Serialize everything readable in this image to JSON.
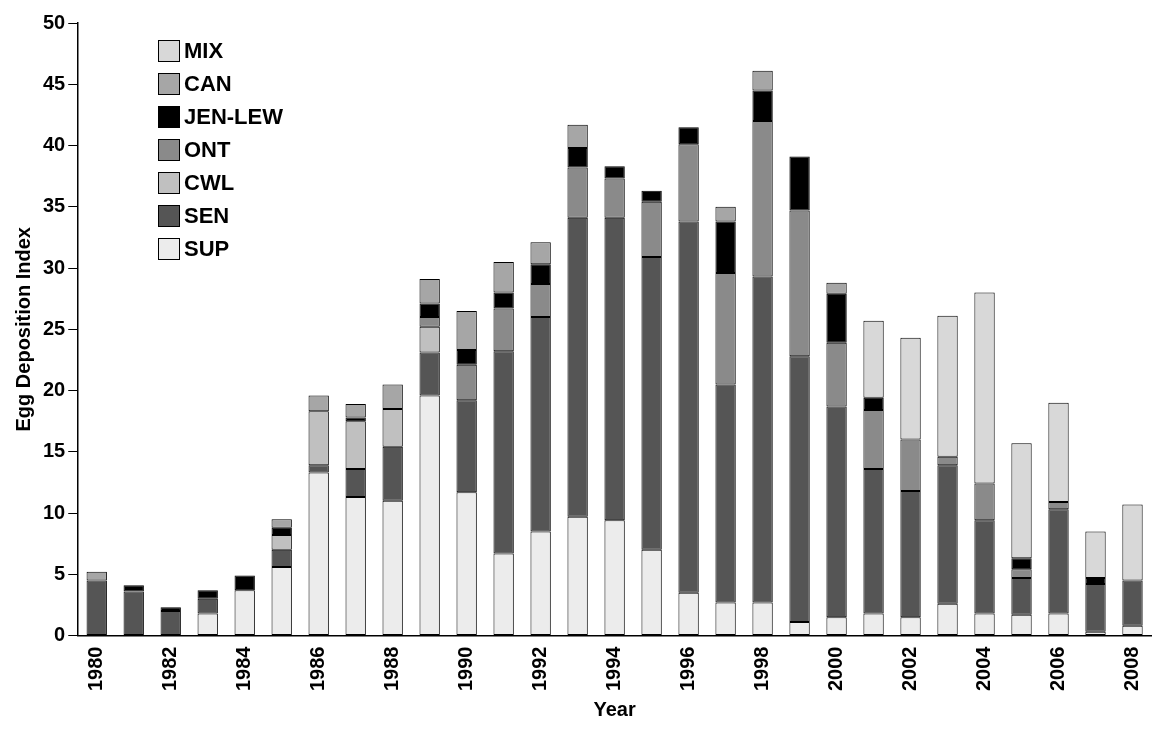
{
  "chart_data": {
    "type": "bar",
    "stacked": true,
    "xlabel": "Year",
    "ylabel": "Egg Deposition Index",
    "ylim": [
      0,
      50
    ],
    "yticks": [
      0,
      5,
      10,
      15,
      20,
      25,
      30,
      35,
      40,
      45,
      50
    ],
    "grid": false,
    "legend": "top left",
    "categories": [
      "1980",
      null,
      "1982",
      null,
      "1984",
      null,
      "1986",
      null,
      "1988",
      null,
      "1990",
      null,
      "1992",
      null,
      "1994",
      null,
      "1996",
      null,
      "1998",
      null,
      "2000",
      null,
      "2002",
      null,
      "2004",
      null,
      "2006",
      null,
      "2008"
    ],
    "series": [
      {
        "name": "SUP",
        "color": "#ececec",
        "values": [
          0,
          0,
          0,
          1.8,
          3.7,
          5.6,
          13.3,
          11.3,
          11.0,
          19.6,
          11.7,
          6.7,
          8.5,
          9.7,
          9.4,
          7.0,
          3.5,
          2.7,
          2.7,
          1.1,
          1.5,
          1.8,
          1.5,
          2.6,
          1.8,
          1.7,
          1.8,
          0.3,
          0.8
        ]
      },
      {
        "name": "SEN",
        "color": "#555555",
        "values": [
          4.5,
          3.6,
          2.0,
          1.2,
          0,
          1.4,
          0.6,
          2.3,
          4.4,
          3.5,
          7.5,
          16.5,
          17.5,
          24.4,
          24.7,
          23.9,
          30.3,
          17.8,
          26.6,
          21.7,
          17.2,
          11.8,
          10.3,
          11.3,
          7.6,
          3.0,
          8.5,
          3.9,
          3.7
        ]
      },
      {
        "name": "CWL",
        "color": "#c0c0c0",
        "values": [
          0,
          0,
          0,
          0,
          0,
          1.2,
          4.4,
          3.9,
          3.1,
          2.1,
          0,
          0,
          0,
          0,
          0,
          0,
          0,
          0,
          0,
          0,
          0,
          0,
          0,
          0,
          0,
          0,
          0,
          0,
          0
        ]
      },
      {
        "name": "ONT",
        "color": "#8a8a8a",
        "values": [
          0,
          0,
          0,
          0,
          0,
          0,
          0,
          0,
          0,
          0.8,
          2.9,
          3.5,
          2.7,
          4.1,
          3.2,
          4.5,
          6.3,
          9.1,
          12.7,
          11.9,
          5.2,
          4.8,
          4.2,
          0.7,
          3.0,
          0.7,
          0.6,
          0,
          0
        ]
      },
      {
        "name": "JEN-LEW",
        "color": "#000000",
        "values": [
          0,
          0.5,
          0.3,
          0.7,
          1.2,
          0.6,
          0,
          0.3,
          0,
          1.1,
          1.2,
          1.3,
          1.6,
          1.6,
          1.0,
          0.9,
          1.4,
          4.2,
          2.5,
          4.4,
          4.0,
          1.0,
          0,
          0,
          0,
          0.9,
          0,
          0.5,
          0
        ]
      },
      {
        "name": "CAN",
        "color": "#a6a6a6",
        "values": [
          0.7,
          0,
          0,
          0,
          0,
          0.7,
          1.3,
          1.1,
          2.0,
          2.0,
          3.2,
          2.5,
          1.8,
          1.9,
          0,
          0,
          0,
          1.2,
          1.6,
          0,
          0.9,
          0,
          0,
          0,
          0,
          0,
          0,
          0,
          0
        ]
      },
      {
        "name": "MIX",
        "color": "#d8d8d8",
        "values": [
          0,
          0,
          0,
          0,
          0,
          0,
          0,
          0,
          0,
          0,
          0,
          0,
          0,
          0,
          0,
          0,
          0,
          0,
          0,
          0,
          0,
          6.3,
          8.3,
          11.5,
          15.6,
          9.4,
          8.1,
          3.8,
          6.2
        ]
      }
    ]
  }
}
